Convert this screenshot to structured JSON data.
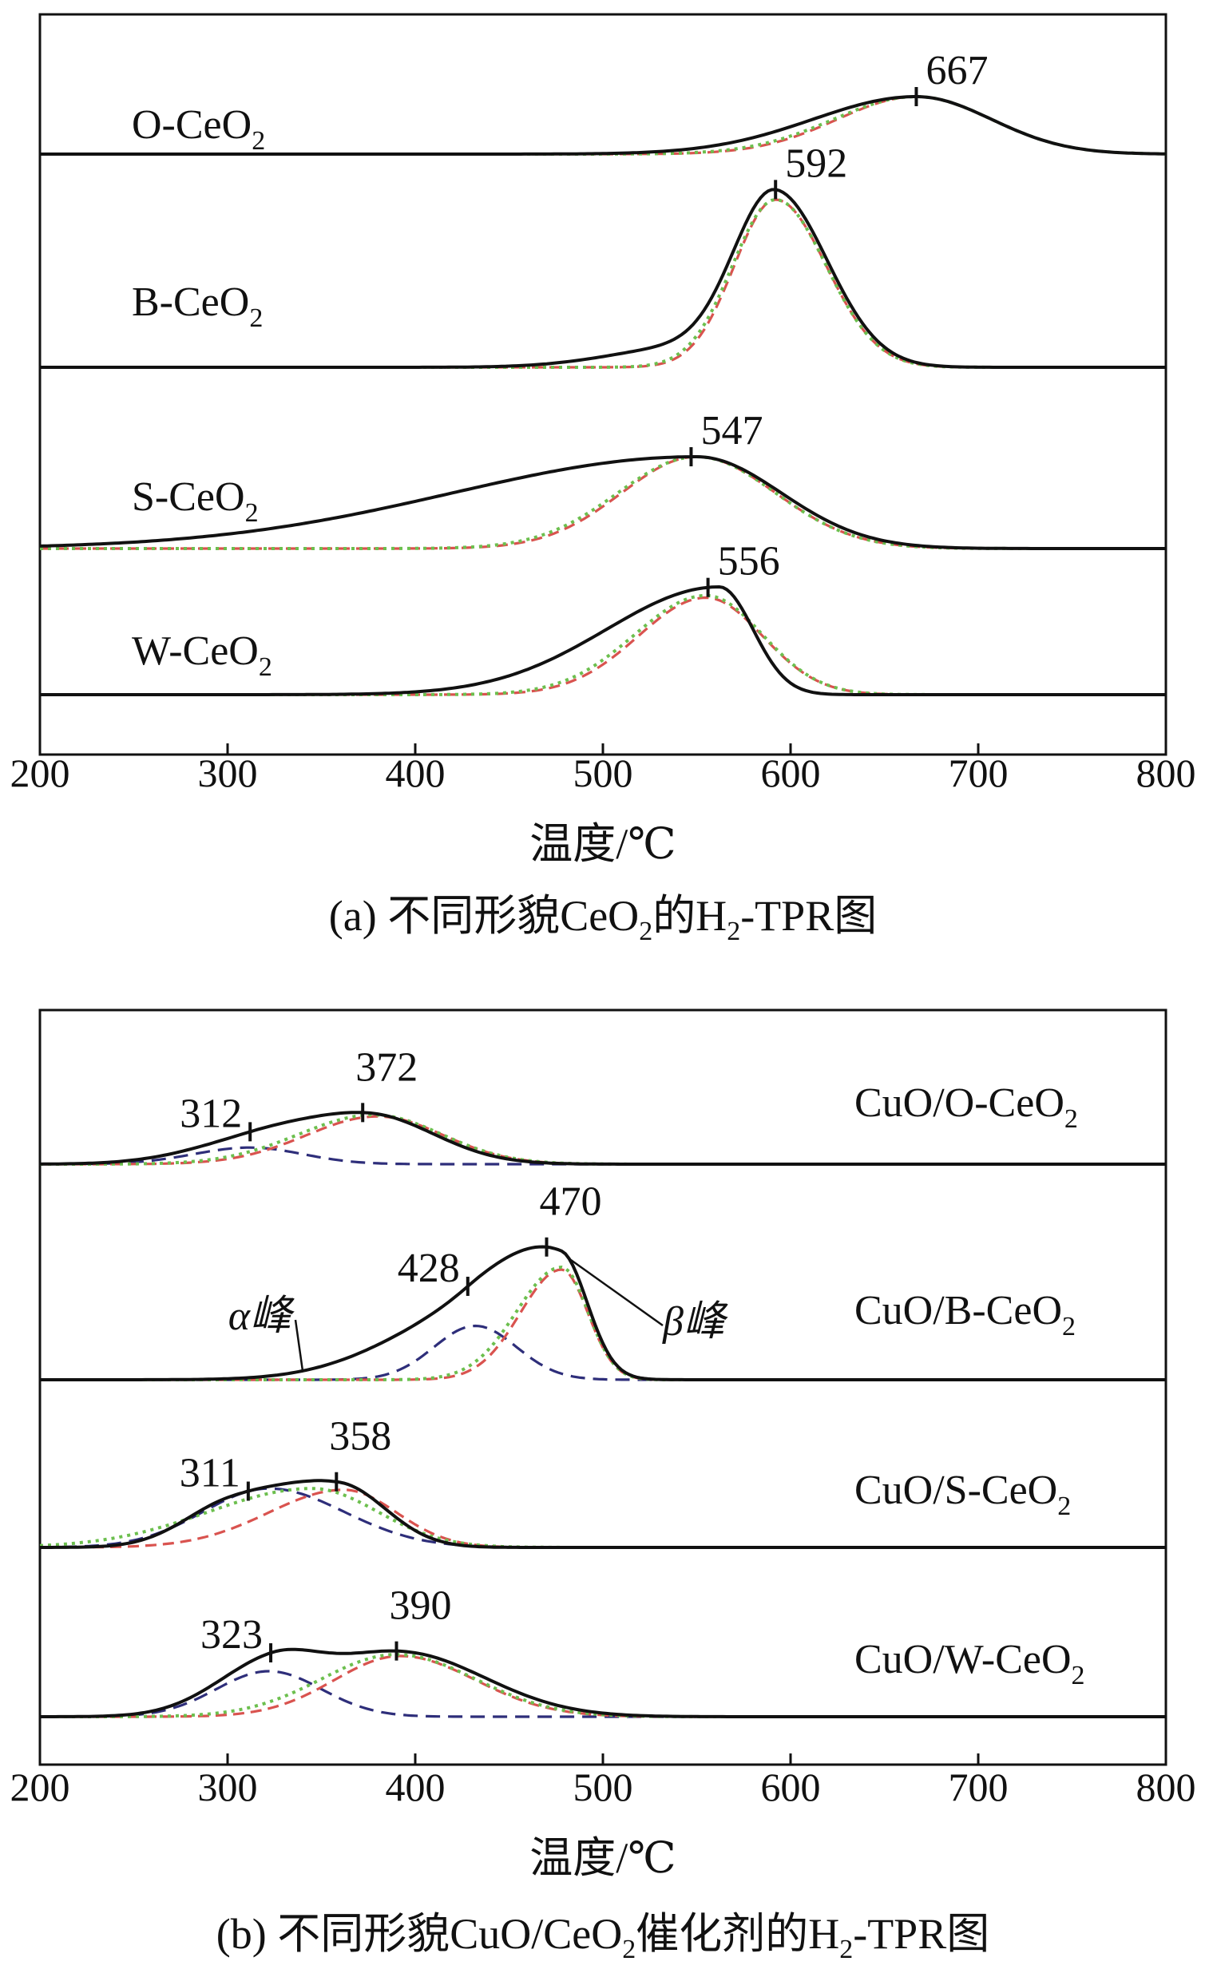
{
  "chart_data": [
    {
      "id": "a",
      "type": "line",
      "title": "(a) 不同形貌CeO₂的H₂-TPR图",
      "caption_parts": [
        "(a) 不同形貌CeO",
        "2",
        "的H",
        "2",
        "-TPR图"
      ],
      "xlabel": "温度/℃",
      "ylabel": "",
      "xlim": [
        200,
        800
      ],
      "xticks": [
        200,
        300,
        400,
        500,
        600,
        700,
        800
      ],
      "series_styles": {
        "measured": "#111111",
        "fit_red": "#d9534f",
        "fit_green": "#6cbf4e",
        "fit_blue": "#2e2e7a"
      },
      "traces": [
        {
          "label": "O-CeO",
          "sub": "2",
          "peaks_labeled": [
            667
          ],
          "measured": {
            "baseline": 0,
            "components": [
              {
                "center": 667,
                "amp": 1.0,
                "width_left": 55,
                "width_right": 40
              }
            ]
          },
          "fits": [
            {
              "style": "fit_red",
              "components": [
                {
                  "center": 667,
                  "amp": 1.0,
                  "width_left": 42,
                  "width_right": 40
                }
              ]
            },
            {
              "style": "fit_green",
              "components": [
                {
                  "center": 667,
                  "amp": 1.0,
                  "width_left": 44,
                  "width_right": 40
                }
              ]
            }
          ]
        },
        {
          "label": "B-CeO",
          "sub": "2",
          "peaks_labeled": [
            592
          ],
          "measured": {
            "baseline": 0,
            "components": [
              {
                "center": 592,
                "amp": 1.0,
                "width_left": 22,
                "width_right": 28
              },
              {
                "center": 545,
                "amp": 0.12,
                "width_left": 40,
                "width_right": 40
              }
            ]
          },
          "fits": [
            {
              "style": "fit_red",
              "components": [
                {
                  "center": 592,
                  "amp": 1.0,
                  "width_left": 22,
                  "width_right": 27
                }
              ]
            },
            {
              "style": "fit_green",
              "components": [
                {
                  "center": 592,
                  "amp": 1.0,
                  "width_left": 23,
                  "width_right": 27
                }
              ]
            }
          ]
        },
        {
          "label": "S-CeO",
          "sub": "2",
          "peaks_labeled": [
            547
          ],
          "measured": {
            "baseline": 0,
            "components": [
              {
                "center": 550,
                "amp": 1.0,
                "width_left": 130,
                "width_right": 45
              }
            ]
          },
          "fits": [
            {
              "style": "fit_red",
              "components": [
                {
                  "center": 550,
                  "amp": 1.0,
                  "width_left": 40,
                  "width_right": 42
                }
              ]
            },
            {
              "style": "fit_green",
              "components": [
                {
                  "center": 550,
                  "amp": 1.0,
                  "width_left": 42,
                  "width_right": 42
                }
              ]
            }
          ]
        },
        {
          "label": "W-CeO",
          "sub": "2",
          "peaks_labeled": [
            556
          ],
          "measured": {
            "baseline": 0,
            "components": [
              {
                "center": 562,
                "amp": 1.0,
                "width_left": 60,
                "width_right": 18
              }
            ]
          },
          "fits": [
            {
              "style": "fit_red",
              "components": [
                {
                  "center": 555,
                  "amp": 0.9,
                  "width_left": 36,
                  "width_right": 30
                }
              ]
            },
            {
              "style": "fit_green",
              "components": [
                {
                  "center": 555,
                  "amp": 0.92,
                  "width_left": 38,
                  "width_right": 30
                }
              ]
            }
          ]
        }
      ]
    },
    {
      "id": "b",
      "type": "line",
      "title": "(b) 不同形貌CuO/CeO₂催化剂的H₂-TPR图",
      "caption_parts": [
        "(b) 不同形貌CuO/CeO",
        "2",
        "催化剂的H",
        "2",
        "-TPR图"
      ],
      "xlabel": "温度/℃",
      "ylabel": "",
      "xlim": [
        200,
        800
      ],
      "xticks": [
        200,
        300,
        400,
        500,
        600,
        700,
        800
      ],
      "annotations": [
        {
          "text": "α峰",
          "target_panel": 1,
          "target_x": 340
        },
        {
          "text": "β峰",
          "target_panel": 1,
          "target_x": 482
        }
      ],
      "traces": [
        {
          "label": "CuO/O-CeO",
          "sub": "2",
          "peaks_labeled": [
            312,
            372
          ],
          "measured": {
            "baseline": 0,
            "components": [
              {
                "center": 312,
                "amp": 0.35,
                "width_left": 35,
                "width_right": 30
              },
              {
                "center": 375,
                "amp": 0.95,
                "width_left": 40,
                "width_right": 35
              }
            ]
          },
          "fits": [
            {
              "style": "fit_blue",
              "components": [
                {
                  "center": 312,
                  "amp": 0.32,
                  "width_left": 30,
                  "width_right": 28
                }
              ]
            },
            {
              "style": "fit_red",
              "components": [
                {
                  "center": 380,
                  "amp": 0.92,
                  "width_left": 38,
                  "width_right": 35
                }
              ]
            },
            {
              "style": "fit_green",
              "components": [
                {
                  "center": 378,
                  "amp": 0.95,
                  "width_left": 40,
                  "width_right": 36
                }
              ]
            }
          ]
        },
        {
          "label": "CuO/B-CeO",
          "sub": "2",
          "peaks_labeled": [
            428,
            470
          ],
          "measured": {
            "baseline": 0,
            "components": [
              {
                "center": 428,
                "amp": 0.5,
                "width_left": 45,
                "width_right": 30
              },
              {
                "center": 478,
                "amp": 0.95,
                "width_left": 32,
                "width_right": 14
              }
            ]
          },
          "fits": [
            {
              "style": "fit_blue",
              "components": [
                {
                  "center": 432,
                  "amp": 0.45,
                  "width_left": 22,
                  "width_right": 22
                }
              ]
            },
            {
              "style": "fit_red",
              "components": [
                {
                  "center": 478,
                  "amp": 0.92,
                  "width_left": 22,
                  "width_right": 14
                }
              ]
            },
            {
              "style": "fit_green",
              "components": [
                {
                  "center": 478,
                  "amp": 0.94,
                  "width_left": 24,
                  "width_right": 14
                }
              ]
            }
          ]
        },
        {
          "label": "CuO/S-CeO",
          "sub": "2",
          "peaks_labeled": [
            311,
            358
          ],
          "measured": {
            "baseline": 0,
            "components": [
              {
                "center": 300,
                "amp": 0.55,
                "width_left": 25,
                "width_right": 30
              },
              {
                "center": 360,
                "amp": 0.92,
                "width_left": 35,
                "width_right": 25
              }
            ]
          },
          "fits": [
            {
              "style": "fit_blue",
              "components": [
                {
                  "center": 322,
                  "amp": 0.9,
                  "width_left": 35,
                  "width_right": 40
                }
              ]
            },
            {
              "style": "fit_red",
              "components": [
                {
                  "center": 362,
                  "amp": 0.88,
                  "width_left": 40,
                  "width_right": 28
                }
              ]
            },
            {
              "style": "fit_green",
              "components": [
                {
                  "center": 345,
                  "amp": 0.9,
                  "width_left": 55,
                  "width_right": 35
                }
              ]
            }
          ]
        },
        {
          "label": "CuO/W-CeO",
          "sub": "2",
          "peaks_labeled": [
            323,
            390
          ],
          "measured": {
            "baseline": 0,
            "components": [
              {
                "center": 323,
                "amp": 0.65,
                "width_left": 30,
                "width_right": 25
              },
              {
                "center": 392,
                "amp": 0.85,
                "width_left": 40,
                "width_right": 45
              }
            ]
          },
          "fits": [
            {
              "style": "fit_blue",
              "components": [
                {
                  "center": 322,
                  "amp": 0.6,
                  "width_left": 28,
                  "width_right": 28
                }
              ]
            },
            {
              "style": "fit_red",
              "components": [
                {
                  "center": 392,
                  "amp": 0.8,
                  "width_left": 35,
                  "width_right": 40
                }
              ]
            },
            {
              "style": "fit_green",
              "components": [
                {
                  "center": 390,
                  "amp": 0.82,
                  "width_left": 40,
                  "width_right": 42
                }
              ]
            }
          ]
        }
      ]
    }
  ]
}
